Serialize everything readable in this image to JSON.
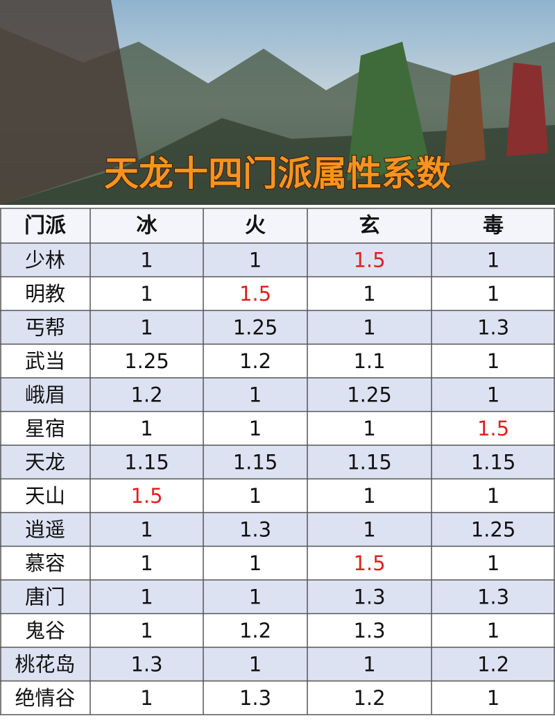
{
  "banner": {
    "title": "天龙十四门派属性系数"
  },
  "table": {
    "header": [
      "门派",
      "冰",
      "火",
      "玄",
      "毒"
    ],
    "rows": [
      [
        "少林",
        1,
        1,
        1.5,
        1
      ],
      [
        "明教",
        1,
        1.5,
        1,
        1
      ],
      [
        "丐帮",
        1,
        1.25,
        1,
        1.3
      ],
      [
        "武当",
        1.25,
        1.2,
        1.1,
        1
      ],
      [
        "峨眉",
        1.2,
        1,
        1.25,
        1
      ],
      [
        "星宿",
        1,
        1,
        1,
        1.5
      ],
      [
        "天龙",
        1.15,
        1.15,
        1.15,
        1.15
      ],
      [
        "天山",
        1.5,
        1,
        1,
        1
      ],
      [
        "逍遥",
        1,
        1.3,
        1,
        1.25
      ],
      [
        "慕容",
        1,
        1,
        1.5,
        1
      ],
      [
        "唐门",
        1,
        1,
        1.3,
        1.3
      ],
      [
        "鬼谷",
        1,
        1.2,
        1.3,
        1
      ],
      [
        "桃花岛",
        1.3,
        1,
        1,
        1.2
      ],
      [
        "绝情谷",
        1,
        1.3,
        1.2,
        1
      ]
    ],
    "highlight": {
      "value": 1.5,
      "color": "#e0201c"
    }
  }
}
